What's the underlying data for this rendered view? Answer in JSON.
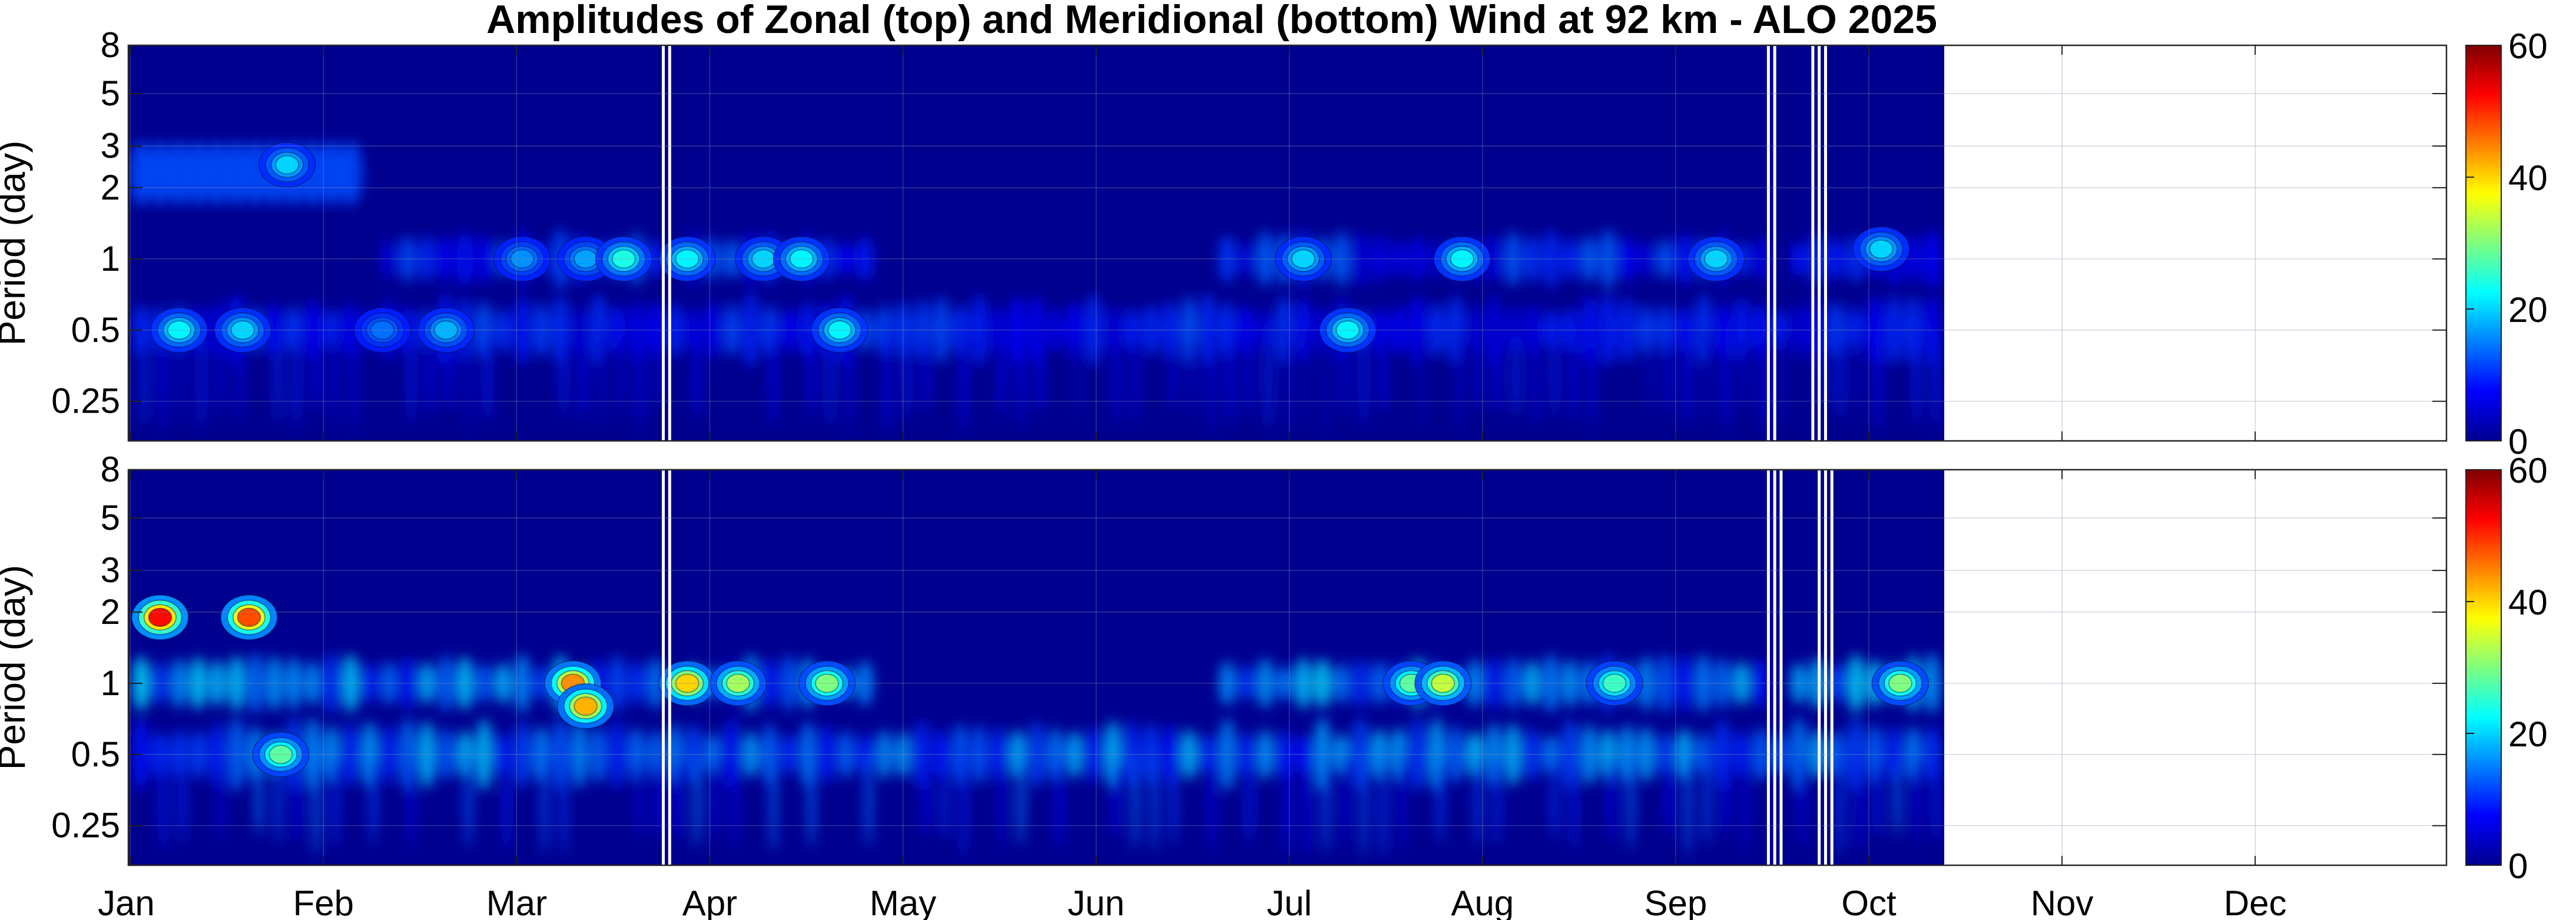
{
  "chart_data": {
    "type": "heatmap",
    "title": "Amplitudes of Zonal (top) and Meridional (bottom) Wind at 92 km - ALO 2025",
    "ylabel": "Period (day)",
    "yscale": "log",
    "yticks": [
      "0.25",
      "0.5",
      "1",
      "2",
      "3",
      "5",
      "8"
    ],
    "xticks": [
      "Jan",
      "Feb",
      "Mar",
      "Apr",
      "May",
      "Jun",
      "Jul",
      "Aug",
      "Sep",
      "Oct",
      "Nov",
      "Dec"
    ],
    "colorbar": {
      "ticks": [
        "0",
        "20",
        "40",
        "60"
      ],
      "range": [
        0,
        60
      ],
      "colormap": "jet"
    },
    "panels": [
      {
        "name": "Zonal (top)",
        "data_end_day": 286,
        "gaps_days": [
          84,
          85,
          258,
          259,
          265,
          266,
          267
        ],
        "blobs": [
          {
            "day": 8,
            "period": 0.5,
            "amp": 22
          },
          {
            "day": 18,
            "period": 0.5,
            "amp": 20
          },
          {
            "day": 25,
            "period": 2.5,
            "amp": 20
          },
          {
            "day": 40,
            "period": 0.5,
            "amp": 14
          },
          {
            "day": 50,
            "period": 0.5,
            "amp": 18
          },
          {
            "day": 62,
            "period": 1,
            "amp": 16
          },
          {
            "day": 72,
            "period": 1,
            "amp": 17
          },
          {
            "day": 78,
            "period": 1,
            "amp": 24
          },
          {
            "day": 88,
            "period": 1,
            "amp": 22
          },
          {
            "day": 100,
            "period": 1,
            "amp": 20
          },
          {
            "day": 106,
            "period": 1,
            "amp": 22
          },
          {
            "day": 112,
            "period": 0.5,
            "amp": 22
          },
          {
            "day": 185,
            "period": 1,
            "amp": 20
          },
          {
            "day": 192,
            "period": 0.5,
            "amp": 22
          },
          {
            "day": 210,
            "period": 1,
            "amp": 22
          },
          {
            "day": 250,
            "period": 1,
            "amp": 20
          },
          {
            "day": 276,
            "period": 1.1,
            "amp": 20
          }
        ]
      },
      {
        "name": "Meridional (bottom)",
        "data_end_day": 286,
        "gaps_days": [
          84,
          85,
          258,
          259,
          260,
          266,
          267,
          268
        ],
        "blobs": [
          {
            "day": 5,
            "period": 1.9,
            "amp": 52
          },
          {
            "day": 19,
            "period": 1.9,
            "amp": 48
          },
          {
            "day": 24,
            "period": 0.5,
            "amp": 28
          },
          {
            "day": 70,
            "period": 1,
            "amp": 44
          },
          {
            "day": 72,
            "period": 0.8,
            "amp": 42
          },
          {
            "day": 88,
            "period": 1,
            "amp": 40
          },
          {
            "day": 96,
            "period": 1,
            "amp": 32
          },
          {
            "day": 110,
            "period": 1,
            "amp": 30
          },
          {
            "day": 202,
            "period": 1,
            "amp": 28
          },
          {
            "day": 207,
            "period": 1,
            "amp": 34
          },
          {
            "day": 234,
            "period": 1,
            "amp": 26
          },
          {
            "day": 279,
            "period": 1,
            "amp": 30
          }
        ]
      }
    ]
  }
}
